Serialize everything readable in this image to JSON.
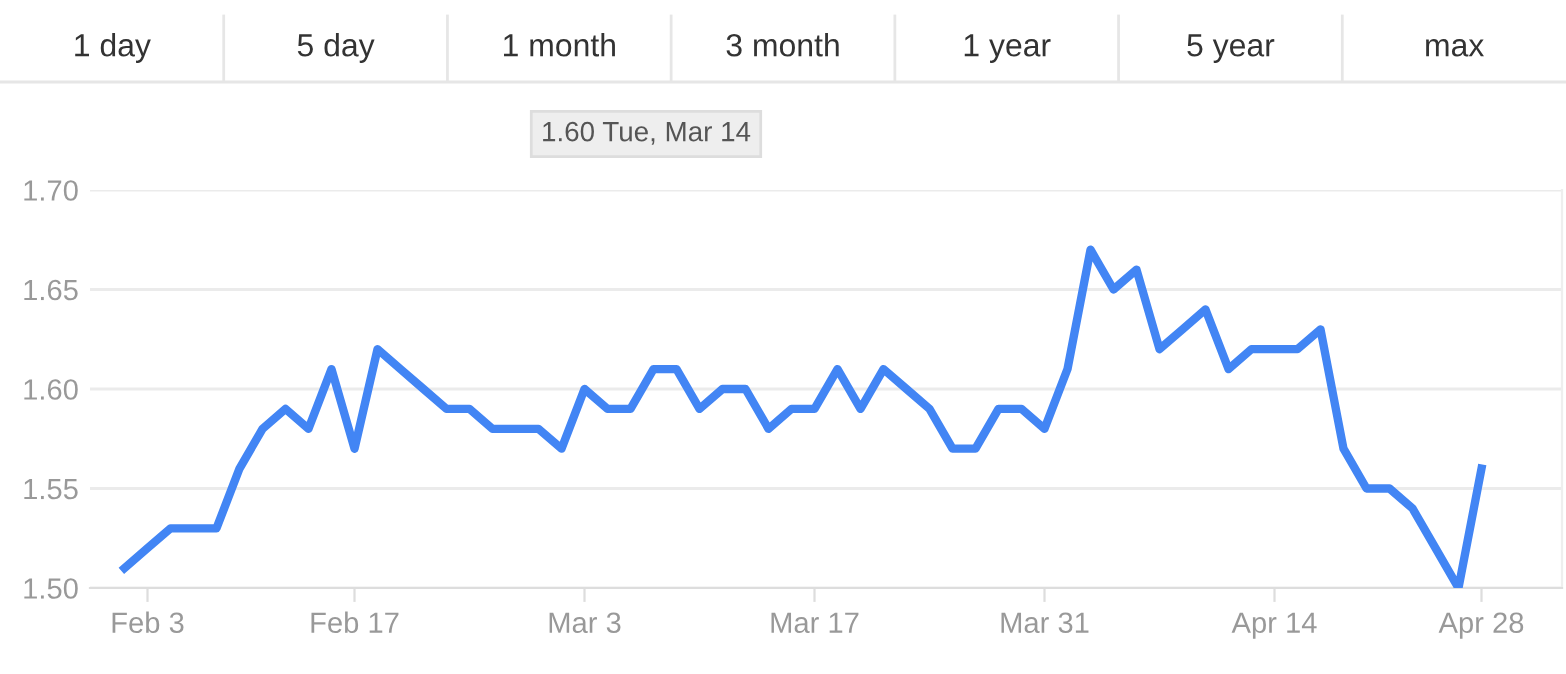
{
  "chart_data": {
    "type": "line",
    "categories": [
      null,
      "Feb 3",
      null,
      null,
      null,
      null,
      null,
      null,
      null,
      null,
      "Feb 17",
      null,
      null,
      null,
      null,
      null,
      null,
      null,
      null,
      null,
      "Mar 3",
      null,
      null,
      null,
      null,
      null,
      null,
      null,
      null,
      null,
      "Mar 17",
      null,
      null,
      null,
      null,
      null,
      null,
      null,
      null,
      null,
      "Mar 31",
      null,
      null,
      null,
      null,
      null,
      null,
      null,
      null,
      null,
      "Apr 14",
      null,
      null,
      null,
      null,
      null,
      null,
      null,
      null,
      "Apr 28"
    ],
    "series": [
      {
        "color": "#4285f4",
        "values": [
          1.51,
          1.52,
          1.53,
          1.53,
          1.53,
          1.56,
          1.58,
          1.59,
          1.58,
          1.61,
          1.57,
          1.62,
          1.61,
          1.6,
          1.59,
          1.59,
          1.58,
          1.58,
          1.58,
          1.57,
          1.6,
          1.59,
          1.59,
          1.61,
          1.61,
          1.59,
          1.6,
          1.6,
          1.58,
          1.59,
          1.59,
          1.61,
          1.59,
          1.61,
          1.6,
          1.59,
          1.57,
          1.57,
          1.59,
          1.59,
          1.58,
          1.61,
          1.67,
          1.65,
          1.66,
          1.62,
          1.63,
          1.64,
          1.61,
          1.62,
          1.62,
          1.62,
          1.63,
          1.57,
          1.55,
          1.55,
          1.54,
          1.52,
          1.5,
          1.56
        ]
      }
    ],
    "ylim": [
      1.5,
      1.7
    ],
    "yticks": [
      {
        "value": 1.5,
        "label": "1.50"
      },
      {
        "value": 1.55,
        "label": "1.55"
      },
      {
        "value": 1.6,
        "label": "1.60"
      },
      {
        "value": 1.65,
        "label": "1.65"
      },
      {
        "value": 1.7,
        "label": "1.70"
      }
    ],
    "grid": "y",
    "line_style": "solid",
    "annotations": [
      "1.60 Tue, Mar 14",
      "1 day",
      "5 day",
      "1 month",
      "3 month",
      "1 year",
      "5 year",
      "max"
    ]
  }
}
